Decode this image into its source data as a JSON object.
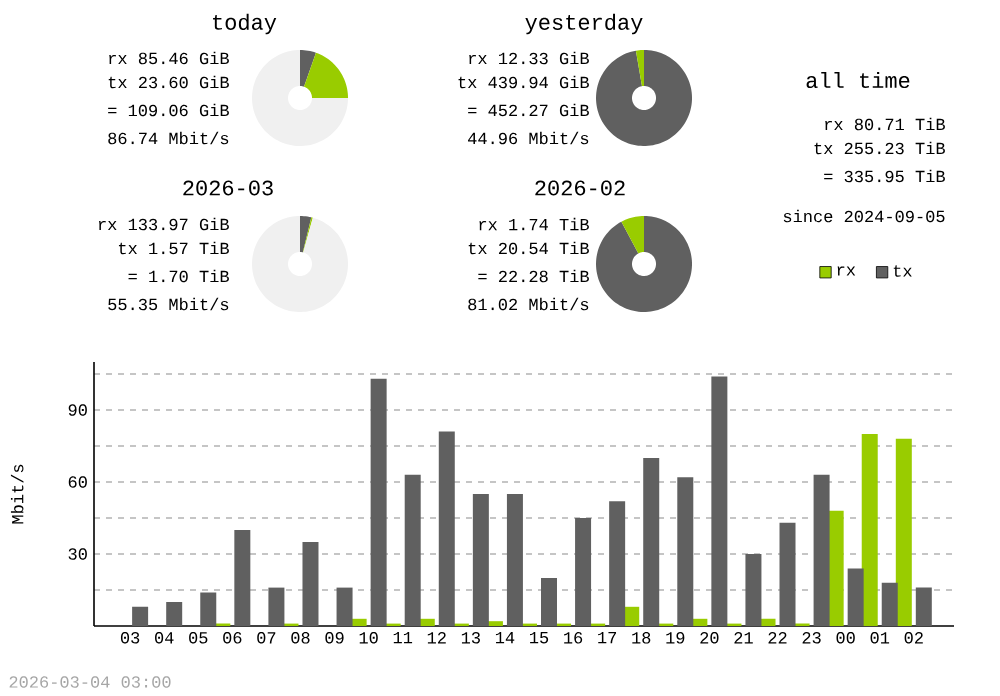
{
  "chart_data": [
    {
      "type": "donut",
      "title": "today",
      "annotations": [
        "rx 85.46 GiB",
        "tx 23.60 GiB",
        "= 109.06 GiB",
        "86.74 Mbit/s"
      ],
      "categories": [
        null,
        null,
        null
      ],
      "values": [
        5.4,
        19.6,
        75
      ],
      "colors": [
        "#606060",
        "#99cc00",
        "#f0f0f0"
      ]
    },
    {
      "type": "donut",
      "title": "yesterday",
      "annotations": [
        "rx 12.33 GiB",
        "tx 439.94 GiB",
        "= 452.27 GiB",
        "44.96 Mbit/s"
      ],
      "categories": [
        null,
        null
      ],
      "values": [
        97.3,
        2.7
      ],
      "colors": [
        "#606060",
        "#99cc00"
      ]
    },
    {
      "type": "donut",
      "title": "2026-03",
      "annotations": [
        "rx 133.97 GiB",
        "tx 1.57 TiB",
        "= 1.70 TiB",
        "55.35 Mbit/s"
      ],
      "categories": [
        null,
        null,
        null
      ],
      "values": [
        3.8,
        0.5,
        95.7
      ],
      "colors": [
        "#606060",
        "#99cc00",
        "#f0f0f0"
      ]
    },
    {
      "type": "donut",
      "title": "2026-02",
      "annotations": [
        "rx 1.74 TiB",
        "tx 20.54 TiB",
        "= 22.28 TiB",
        "81.02 Mbit/s"
      ],
      "categories": [
        null,
        null
      ],
      "values": [
        92.2,
        7.8
      ],
      "colors": [
        "#606060",
        "#99cc00"
      ]
    },
    {
      "type": "other",
      "title": "all time",
      "annotations": [
        "rx 80.71 TiB",
        "tx 255.23 TiB",
        "= 335.95 TiB",
        "since 2024-09-05"
      ]
    },
    {
      "type": "bar",
      "ylabel": "Mbit/s",
      "categories": [
        "03",
        "04",
        "05",
        "06",
        "07",
        "08",
        "09",
        "10",
        "11",
        "12",
        "13",
        "14",
        "15",
        "16",
        "17",
        "18",
        "19",
        "20",
        "21",
        "22",
        "23",
        "00",
        "01",
        "02"
      ],
      "series": [
        {
          "name": "rx",
          "color": "#99cc00",
          "values": [
            0,
            0,
            0,
            1,
            0,
            1,
            0,
            3,
            1,
            3,
            1,
            2,
            1,
            1,
            1,
            8,
            1,
            3,
            1,
            3,
            1,
            48,
            80,
            78
          ]
        },
        {
          "name": "tx",
          "color": "#606060",
          "values": [
            8,
            10,
            14,
            40,
            16,
            35,
            16,
            103,
            63,
            81,
            55,
            55,
            20,
            45,
            52,
            70,
            62,
            104,
            30,
            43,
            63,
            24,
            18,
            16
          ]
        }
      ],
      "ylim": [
        0,
        110
      ],
      "yticks": [
        {
          "value": 15,
          "label": null
        },
        30,
        {
          "value": 45,
          "label": null
        },
        60,
        {
          "value": 75,
          "label": null
        },
        90,
        {
          "value": 105,
          "label": null
        }
      ],
      "grid": "y",
      "legend": "top right",
      "annotations": [
        "2026-03-04 03:00"
      ]
    }
  ]
}
